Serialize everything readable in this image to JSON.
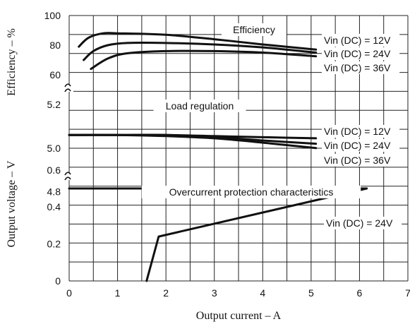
{
  "chart_data": {
    "type": "line",
    "xlabel": "Output current – A",
    "x_ticks": [
      "0",
      "1",
      "2",
      "3",
      "4",
      "5",
      "6",
      "7"
    ],
    "xlim": [
      0,
      7
    ],
    "grid": true,
    "ylabels": {
      "efficiency": "Efficiency – %",
      "voltage": "Output voltage – V"
    },
    "panels": [
      {
        "id": "efficiency",
        "title": "Efficiency",
        "ylim": [
          55,
          100
        ],
        "y_ticks": [
          "100",
          "80",
          "60"
        ],
        "series": [
          {
            "name": "Vin (DC) = 12V",
            "points": [
              [
                0.2,
                79
              ],
              [
                0.4,
                85
              ],
              [
                0.7,
                88
              ],
              [
                1.0,
                88
              ],
              [
                2,
                87
              ],
              [
                3,
                84
              ],
              [
                4,
                80.5
              ],
              [
                5.1,
                77
              ]
            ]
          },
          {
            "name": "Vin (DC) = 24V",
            "points": [
              [
                0.3,
                70
              ],
              [
                0.5,
                76
              ],
              [
                0.8,
                80
              ],
              [
                1.2,
                81.5
              ],
              [
                2,
                81.5
              ],
              [
                3,
                80.5
              ],
              [
                4,
                78.5
              ],
              [
                5.1,
                75
              ]
            ]
          },
          {
            "name": "Vin (DC) = 36V",
            "points": [
              [
                0.45,
                64
              ],
              [
                0.8,
                71
              ],
              [
                1.2,
                74.5
              ],
              [
                2,
                76
              ],
              [
                3,
                76
              ],
              [
                4,
                75
              ],
              [
                5.1,
                72.5
              ]
            ]
          }
        ]
      },
      {
        "id": "load_regulation",
        "title": "Load regulation",
        "ylim": [
          4.75,
          5.25
        ],
        "y_ticks": [
          "5.2",
          "5.0",
          "4.8"
        ],
        "series": [
          {
            "name": "Vin (DC) = 12V",
            "points": [
              [
                0,
                5.06
              ],
              [
                1,
                5.06
              ],
              [
                2,
                5.06
              ],
              [
                3,
                5.055
              ],
              [
                4,
                5.05
              ],
              [
                5.1,
                5.045
              ]
            ]
          },
          {
            "name": "Vin (DC) = 24V",
            "points": [
              [
                0,
                5.06
              ],
              [
                1,
                5.06
              ],
              [
                2,
                5.06
              ],
              [
                3,
                5.05
              ],
              [
                4,
                5.035
              ],
              [
                5.1,
                5.02
              ]
            ]
          },
          {
            "name": "Vin (DC) = 36V",
            "points": [
              [
                0,
                5.06
              ],
              [
                1,
                5.06
              ],
              [
                2,
                5.055
              ],
              [
                3,
                5.045
              ],
              [
                4,
                5.025
              ],
              [
                5.1,
                5.0
              ]
            ]
          }
        ]
      },
      {
        "id": "overcurrent",
        "title": "Overcurrent protection characteristics",
        "ylim": [
          0,
          0.65
        ],
        "y_ticks": [
          "0.6",
          "0.4",
          "0.2",
          "0"
        ],
        "series": [
          {
            "name": "Vin (DC) = 24V",
            "points": [
              [
                0,
                0.5
              ],
              [
                6.15,
                0.5
              ],
              [
                1.85,
                0.24
              ],
              [
                1.6,
                0.0
              ]
            ]
          }
        ]
      }
    ],
    "legend_labels": {
      "efficiency": [
        "Vin (DC) = 12V",
        "Vin (DC) = 24V",
        "Vin (DC) = 36V"
      ],
      "load_regulation": [
        "Vin (DC) = 12V",
        "Vin (DC) = 24V",
        "Vin (DC) = 36V"
      ],
      "overcurrent": [
        "Vin (DC) = 24V"
      ]
    }
  }
}
